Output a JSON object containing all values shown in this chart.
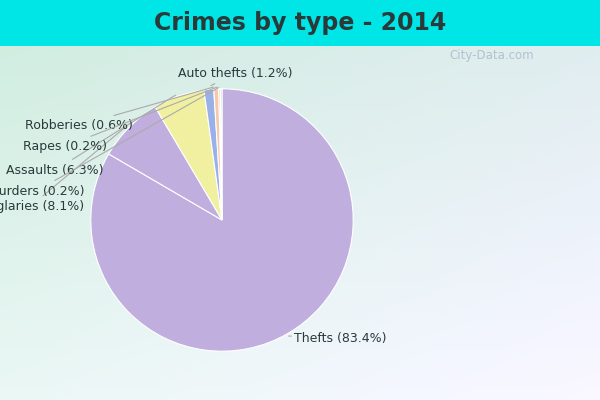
{
  "title": "Crimes by type - 2014",
  "slices": [
    {
      "label": "Thefts",
      "pct": 83.4,
      "color": "#c0aede"
    },
    {
      "label": "Burglaries",
      "pct": 8.1,
      "color": "#c0aede"
    },
    {
      "label": "Assaults",
      "pct": 6.3,
      "color": "#f0f0a0"
    },
    {
      "label": "Auto thefts",
      "pct": 1.2,
      "color": "#9ab0e8"
    },
    {
      "label": "Robberies",
      "pct": 0.6,
      "color": "#f5c8a8"
    },
    {
      "label": "Rapes",
      "pct": 0.2,
      "color": "#f5b8b8"
    },
    {
      "label": "Murders",
      "pct": 0.2,
      "color": "#b8deb8"
    }
  ],
  "background_top": "#00e5e5",
  "background_main_tl": "#c8f0e8",
  "background_main_br": "#e8f5e8",
  "title_fontsize": 17,
  "label_fontsize": 9,
  "watermark": "City-Data.com",
  "title_color": "#2a3a3a",
  "label_color": "#2a3a3a"
}
